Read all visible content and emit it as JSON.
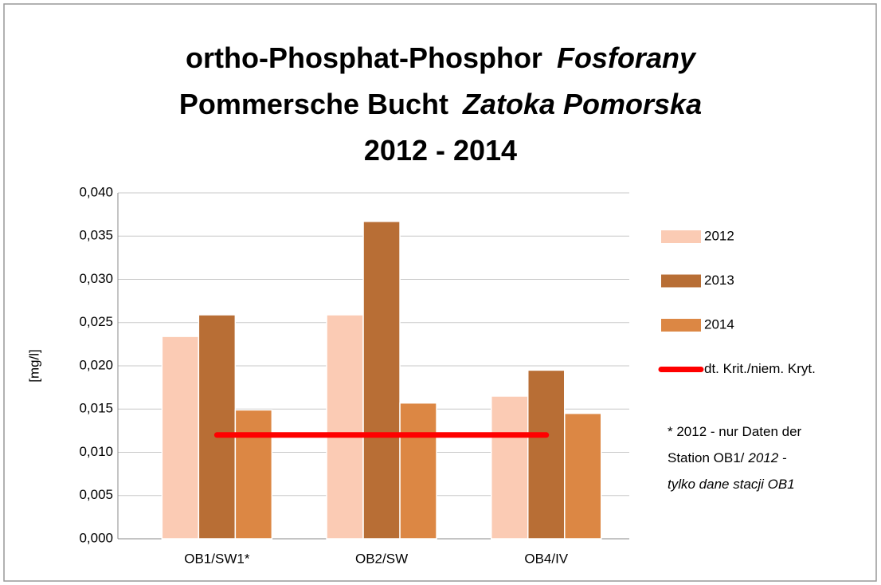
{
  "chart_data": {
    "type": "bar",
    "title_lines": [
      [
        {
          "text": "ortho-Phosphat-Phosphor",
          "italic": false
        },
        {
          "text": "Fosforany",
          "italic": true
        }
      ],
      [
        {
          "text": "Pommersche Bucht",
          "italic": false
        },
        {
          "text": "Zatoka Pomorska",
          "italic": true
        }
      ],
      [
        {
          "text": "2012 - 2014",
          "italic": false
        }
      ]
    ],
    "y_label": "[mg/l]",
    "categories": [
      "OB1/SW1*",
      "OB2/SW",
      "OB4/IV"
    ],
    "series": [
      {
        "name": "2012",
        "color": "#fbcbb4",
        "values": [
          0.0234,
          0.0259,
          0.0165
        ]
      },
      {
        "name": "2013",
        "color": "#b86e35",
        "values": [
          0.0259,
          0.0367,
          0.0195
        ]
      },
      {
        "name": "2014",
        "color": "#dc8744",
        "values": [
          0.0149,
          0.0157,
          0.0145
        ]
      },
      {
        "name": "dt. Krit./niem. Kryt.",
        "color": "#ff0000",
        "type": "line",
        "values": [
          0.012,
          0.012,
          0.012
        ]
      }
    ],
    "ylim": [
      0,
      0.04
    ],
    "yticks": [
      {
        "value": 0,
        "label": "0,000"
      },
      {
        "value": 0.005,
        "label": "0,005"
      },
      {
        "value": 0.01,
        "label": "0,010"
      },
      {
        "value": 0.015,
        "label": "0,015"
      },
      {
        "value": 0.02,
        "label": "0,020"
      },
      {
        "value": 0.025,
        "label": "0,025"
      },
      {
        "value": 0.03,
        "label": "0,030"
      },
      {
        "value": 0.035,
        "label": "0,035"
      },
      {
        "value": 0.04,
        "label": "0,040"
      }
    ],
    "grid": true,
    "legend": "right",
    "note_lines": [
      [
        {
          "text": "* 2012 - nur Daten der",
          "italic": false
        }
      ],
      [
        {
          "text": "Station OB1/",
          "italic": false
        },
        {
          "text": "2012 -",
          "italic": true
        }
      ],
      [
        {
          "text": "tylko dane stacji OB1",
          "italic": true
        }
      ]
    ]
  }
}
